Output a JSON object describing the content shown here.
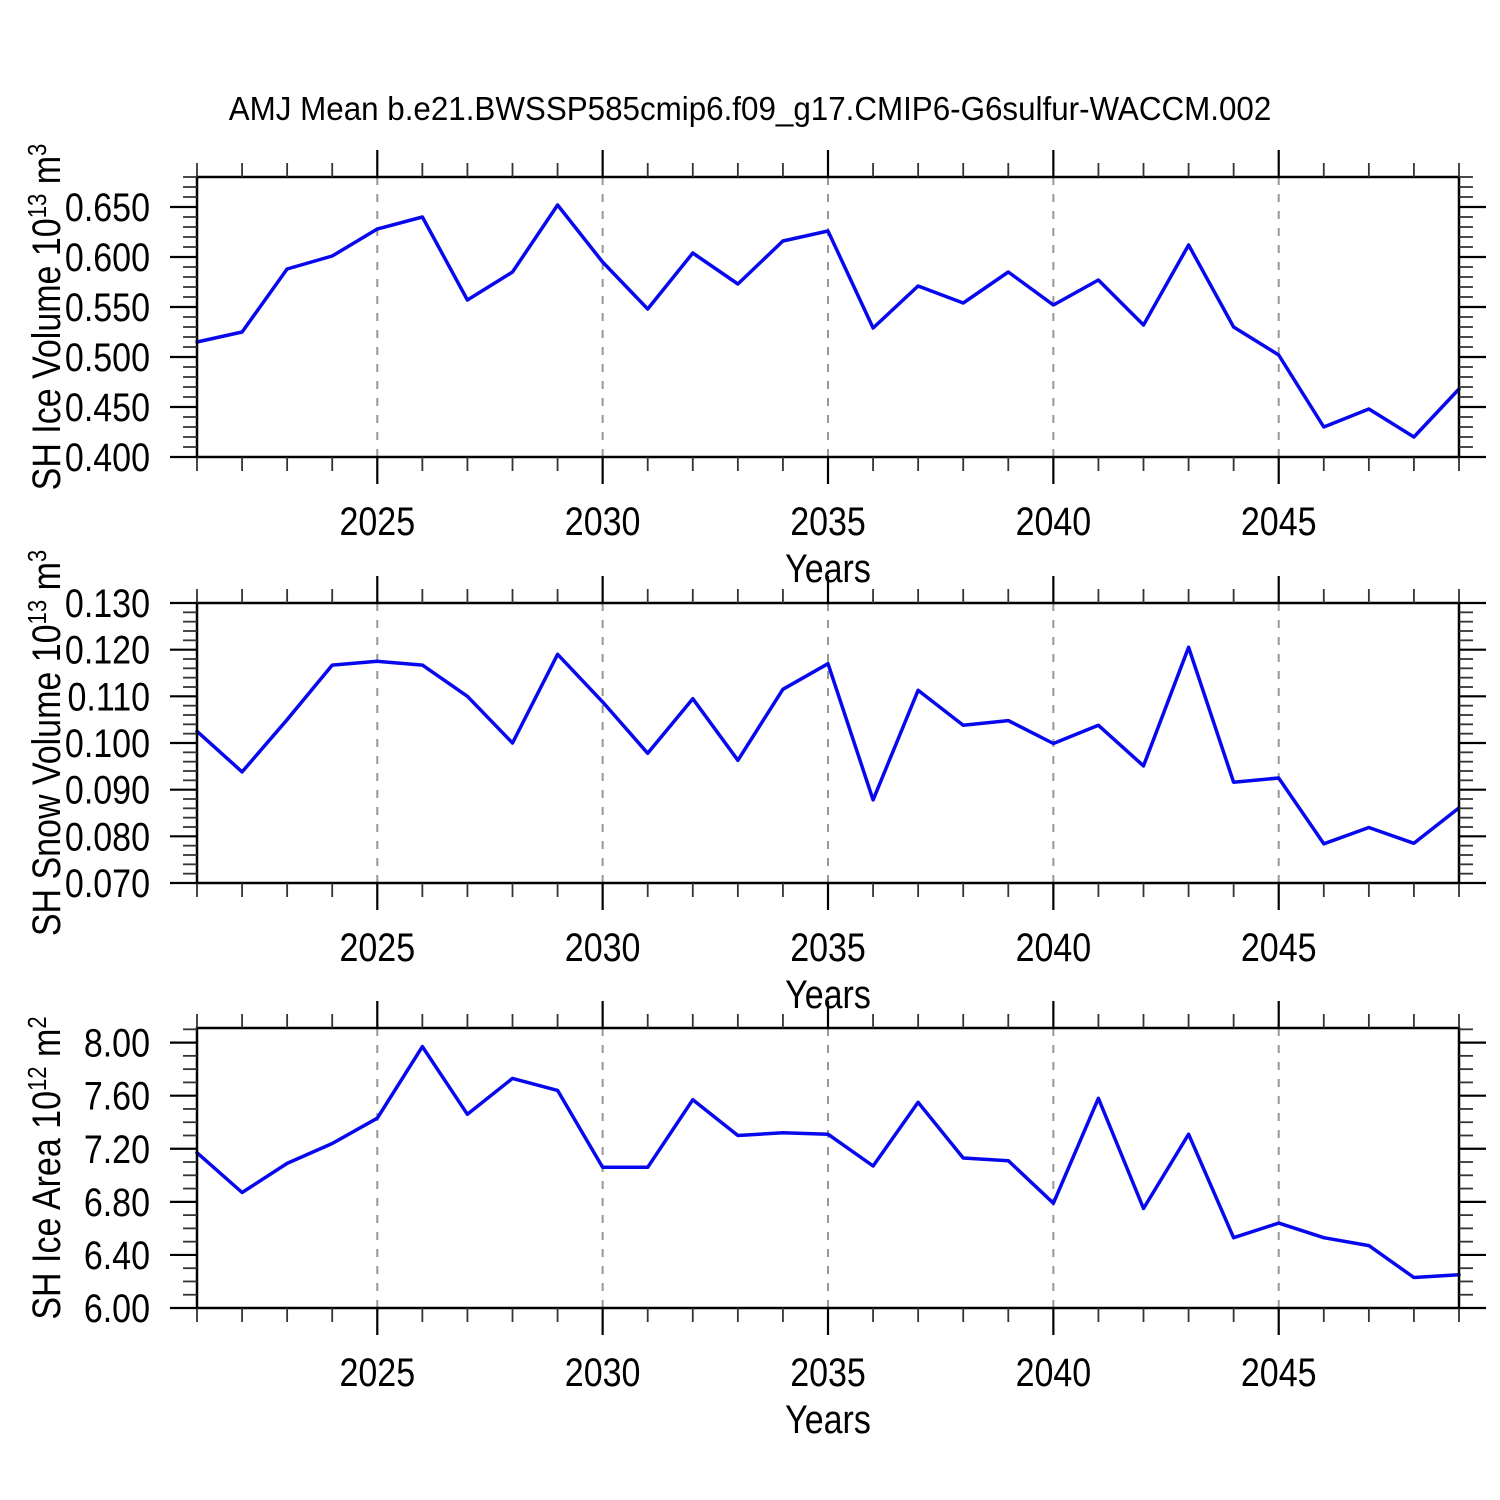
{
  "title": "AMJ Mean b.e21.BWSSP585cmip6.f09_g17.CMIP6-G6sulfur-WACCM.002",
  "colors": {
    "background": "#ffffff",
    "line": "#0808ee",
    "grid": "#999999",
    "frame": "#000000",
    "tick_major": "#000000",
    "tick_minor": "#333333",
    "text": "#000000"
  },
  "chart_data": [
    {
      "type": "line",
      "name": "sh-ice-volume",
      "ylabel": "SH Ice Volume 10^13 m^3",
      "ylabel_rich": [
        {
          "text": "SH Ice Volume 10"
        },
        {
          "text": "13",
          "sup": true
        },
        {
          "text": " m"
        },
        {
          "text": "3",
          "sup": true
        }
      ],
      "xlabel": "Years",
      "x": [
        2021,
        2022,
        2023,
        2024,
        2025,
        2026,
        2027,
        2028,
        2029,
        2030,
        2031,
        2032,
        2033,
        2034,
        2035,
        2036,
        2037,
        2038,
        2039,
        2040,
        2041,
        2042,
        2043,
        2044,
        2045,
        2046,
        2047,
        2048,
        2049
      ],
      "values": [
        0.515,
        0.525,
        0.588,
        0.601,
        0.628,
        0.64,
        0.557,
        0.585,
        0.652,
        0.595,
        0.548,
        0.604,
        0.573,
        0.616,
        0.626,
        0.529,
        0.571,
        0.554,
        0.585,
        0.552,
        0.577,
        0.532,
        0.612,
        0.53,
        0.502,
        0.43,
        0.448,
        0.42,
        0.468
      ],
      "xlim": [
        2021,
        2049
      ],
      "ylim": [
        0.4,
        0.68
      ],
      "xticks_major": [
        2025,
        2030,
        2035,
        2040,
        2045
      ],
      "xminor_step": 1,
      "yticks": [
        0.4,
        0.45,
        0.5,
        0.55,
        0.6,
        0.65
      ],
      "yminor_step": 0.01,
      "ytick_decimals": 3,
      "grid": "vertical-dashed-at-major-xticks",
      "legend": "none"
    },
    {
      "type": "line",
      "name": "sh-snow-volume",
      "ylabel": "SH Snow Volume 10^13 m^3",
      "ylabel_rich": [
        {
          "text": "SH Snow Volume 10"
        },
        {
          "text": "13",
          "sup": true
        },
        {
          "text": " m"
        },
        {
          "text": "3",
          "sup": true
        }
      ],
      "xlabel": "Years",
      "x": [
        2021,
        2022,
        2023,
        2024,
        2025,
        2026,
        2027,
        2028,
        2029,
        2030,
        2031,
        2032,
        2033,
        2034,
        2035,
        2036,
        2037,
        2038,
        2039,
        2040,
        2041,
        2042,
        2043,
        2044,
        2045,
        2046,
        2047,
        2048,
        2049
      ],
      "values": [
        0.1025,
        0.0938,
        0.105,
        0.1167,
        0.1175,
        0.1167,
        0.11,
        0.1,
        0.119,
        0.1088,
        0.0978,
        0.1095,
        0.0963,
        0.1115,
        0.117,
        0.0878,
        0.1113,
        0.1038,
        0.1048,
        0.0999,
        0.1038,
        0.0951,
        0.1205,
        0.0916,
        0.0925,
        0.0784,
        0.0819,
        0.0785,
        0.0861
      ],
      "xlim": [
        2021,
        2049
      ],
      "ylim": [
        0.07,
        0.13
      ],
      "xticks_major": [
        2025,
        2030,
        2035,
        2040,
        2045
      ],
      "xminor_step": 1,
      "yticks": [
        0.07,
        0.08,
        0.09,
        0.1,
        0.11,
        0.12,
        0.13
      ],
      "yminor_step": 0.002,
      "ytick_decimals": 3,
      "grid": "vertical-dashed-at-major-xticks",
      "legend": "none"
    },
    {
      "type": "line",
      "name": "sh-ice-area",
      "ylabel": "SH Ice Area 10^12 m^2",
      "ylabel_rich": [
        {
          "text": "SH Ice Area 10"
        },
        {
          "text": "12",
          "sup": true
        },
        {
          "text": " m"
        },
        {
          "text": "2",
          "sup": true
        }
      ],
      "xlabel": "Years",
      "x": [
        2021,
        2022,
        2023,
        2024,
        2025,
        2026,
        2027,
        2028,
        2029,
        2030,
        2031,
        2032,
        2033,
        2034,
        2035,
        2036,
        2037,
        2038,
        2039,
        2040,
        2041,
        2042,
        2043,
        2044,
        2045,
        2046,
        2047,
        2048,
        2049
      ],
      "values": [
        7.17,
        6.87,
        7.09,
        7.24,
        7.43,
        7.97,
        7.46,
        7.73,
        7.64,
        7.06,
        7.06,
        7.57,
        7.3,
        7.32,
        7.31,
        7.07,
        7.55,
        7.13,
        7.11,
        6.79,
        7.58,
        6.75,
        7.31,
        6.53,
        6.64,
        6.53,
        6.47,
        6.23,
        6.25
      ],
      "xlim": [
        2021,
        2049
      ],
      "ylim": [
        6.0,
        8.11
      ],
      "xticks_major": [
        2025,
        2030,
        2035,
        2040,
        2045
      ],
      "xminor_step": 1,
      "yticks": [
        6.0,
        6.4,
        6.8,
        7.2,
        7.6,
        8.0
      ],
      "yminor_step": 0.1,
      "ytick_decimals": 2,
      "grid": "vertical-dashed-at-major-xticks",
      "legend": "none"
    }
  ]
}
